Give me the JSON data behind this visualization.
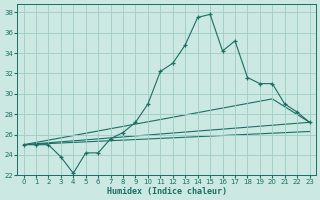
{
  "xlabel": "Humidex (Indice chaleur)",
  "bg_color": "#cce8e2",
  "grid_color": "#9eccc4",
  "line_color": "#1a6e64",
  "xlim_min": -0.5,
  "xlim_max": 23.5,
  "ylim_min": 22,
  "ylim_max": 38.8,
  "xticks": [
    0,
    1,
    2,
    3,
    4,
    5,
    6,
    7,
    8,
    9,
    10,
    11,
    12,
    13,
    14,
    15,
    16,
    17,
    18,
    19,
    20,
    21,
    22,
    23
  ],
  "yticks": [
    22,
    24,
    26,
    28,
    30,
    32,
    34,
    36,
    38
  ],
  "series1_x": [
    0,
    1,
    2,
    3,
    4,
    5,
    6,
    7,
    8,
    9,
    10,
    11,
    12,
    13,
    14,
    15,
    16,
    17,
    18,
    19,
    20,
    21,
    22,
    23
  ],
  "series1_y": [
    25.0,
    25.0,
    25.0,
    23.8,
    22.2,
    24.2,
    24.2,
    25.6,
    26.2,
    27.2,
    29.0,
    32.2,
    33.0,
    34.8,
    37.5,
    37.8,
    34.2,
    35.2,
    31.6,
    31.0,
    31.0,
    29.0,
    28.2,
    27.2
  ],
  "series2_x": [
    0,
    23
  ],
  "series2_y": [
    25.0,
    27.2
  ],
  "series3_x": [
    0,
    23
  ],
  "series3_y": [
    25.0,
    26.3
  ],
  "series4_x": [
    0,
    20,
    23
  ],
  "series4_y": [
    25.0,
    29.5,
    27.2
  ]
}
